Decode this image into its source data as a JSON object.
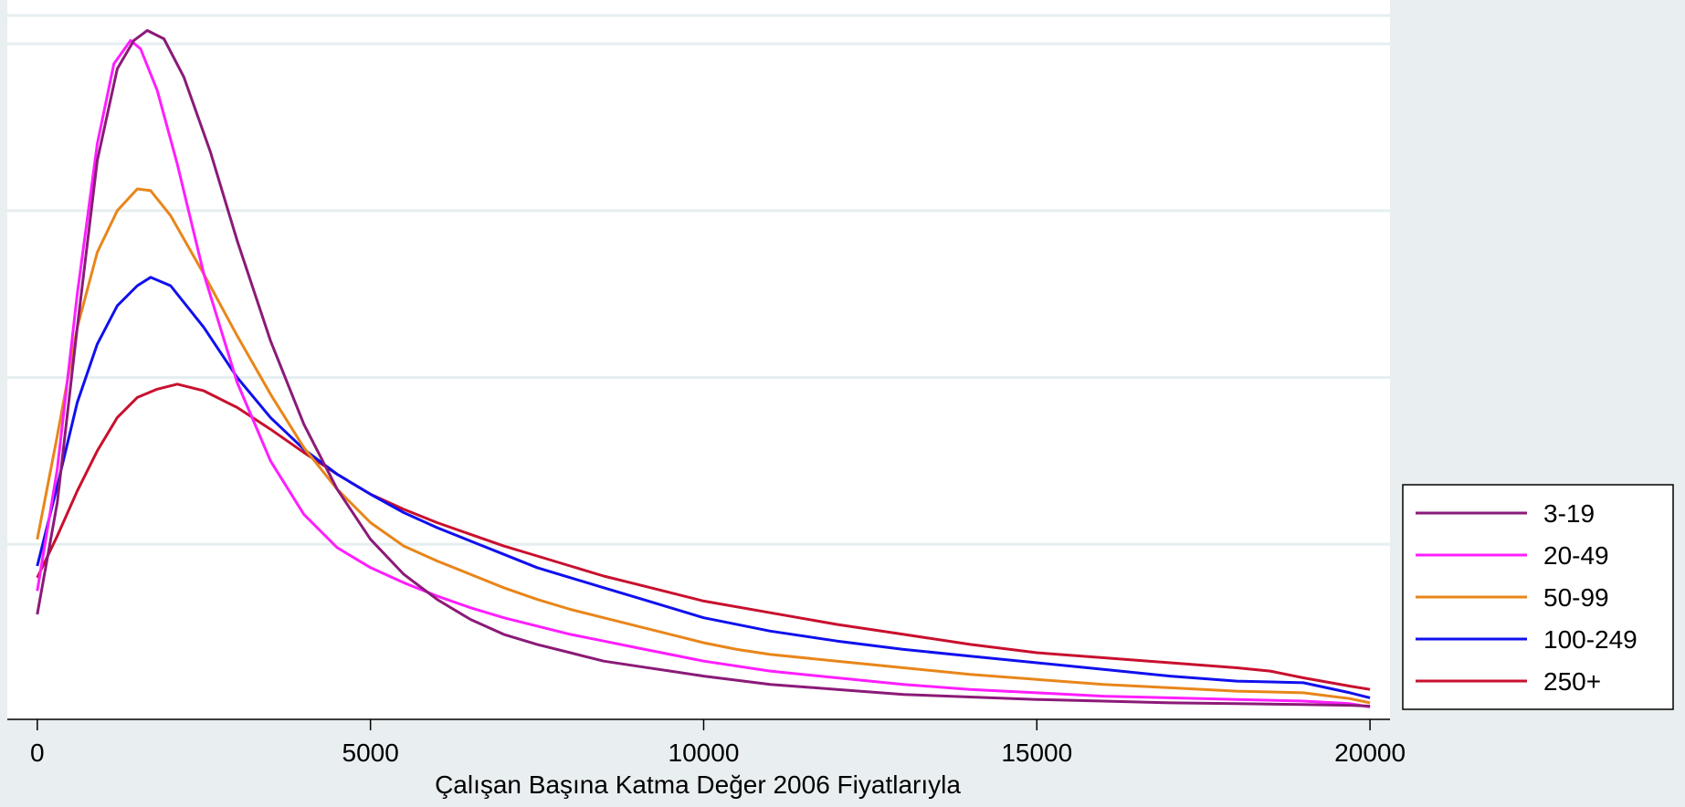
{
  "chart_data": {
    "type": "line",
    "title": "",
    "xlabel": "Çalışan Başına Katma Değer 2006 Fiyatlarıyla",
    "ylabel": "",
    "xlim": [
      -450,
      20300
    ],
    "ylim": [
      0,
      4
    ],
    "xticks": [
      "0",
      "5000",
      "10000",
      "15000",
      "20000"
    ],
    "x_tick_values": [
      0,
      5000,
      10000,
      15000,
      20000
    ],
    "grid": true,
    "y_gridlines": [
      1,
      2,
      3,
      4
    ],
    "legend_position": "right",
    "series": [
      {
        "name": "3-19",
        "color": "#8b1a78",
        "points": [
          [
            0,
            0.58
          ],
          [
            300,
            1.25
          ],
          [
            600,
            2.3
          ],
          [
            900,
            3.3
          ],
          [
            1200,
            3.85
          ],
          [
            1450,
            4.02
          ],
          [
            1650,
            4.08
          ],
          [
            1900,
            4.03
          ],
          [
            2200,
            3.8
          ],
          [
            2600,
            3.35
          ],
          [
            3000,
            2.82
          ],
          [
            3500,
            2.22
          ],
          [
            4000,
            1.72
          ],
          [
            4500,
            1.33
          ],
          [
            5000,
            1.03
          ],
          [
            5500,
            0.82
          ],
          [
            6000,
            0.67
          ],
          [
            6500,
            0.55
          ],
          [
            7000,
            0.46
          ],
          [
            7500,
            0.4
          ],
          [
            8000,
            0.35
          ],
          [
            8500,
            0.3
          ],
          [
            9000,
            0.27
          ],
          [
            9500,
            0.24
          ],
          [
            10000,
            0.21
          ],
          [
            11000,
            0.16
          ],
          [
            12000,
            0.13
          ],
          [
            13000,
            0.1
          ],
          [
            14000,
            0.085
          ],
          [
            15000,
            0.07
          ],
          [
            16000,
            0.06
          ],
          [
            17000,
            0.05
          ],
          [
            18000,
            0.045
          ],
          [
            19000,
            0.04
          ],
          [
            19700,
            0.035
          ],
          [
            20000,
            0.03
          ]
        ]
      },
      {
        "name": "20-49",
        "color": "#ff1eff",
        "points": [
          [
            0,
            0.72
          ],
          [
            300,
            1.45
          ],
          [
            600,
            2.5
          ],
          [
            900,
            3.4
          ],
          [
            1150,
            3.88
          ],
          [
            1400,
            4.02
          ],
          [
            1550,
            3.97
          ],
          [
            1800,
            3.72
          ],
          [
            2100,
            3.28
          ],
          [
            2500,
            2.62
          ],
          [
            3000,
            1.97
          ],
          [
            3500,
            1.5
          ],
          [
            4000,
            1.18
          ],
          [
            4500,
            0.98
          ],
          [
            5000,
            0.86
          ],
          [
            5500,
            0.77
          ],
          [
            6000,
            0.69
          ],
          [
            6500,
            0.62
          ],
          [
            7000,
            0.56
          ],
          [
            7500,
            0.51
          ],
          [
            8000,
            0.46
          ],
          [
            8500,
            0.42
          ],
          [
            9000,
            0.38
          ],
          [
            9500,
            0.34
          ],
          [
            10000,
            0.3
          ],
          [
            11000,
            0.24
          ],
          [
            12000,
            0.2
          ],
          [
            13000,
            0.16
          ],
          [
            14000,
            0.13
          ],
          [
            15000,
            0.11
          ],
          [
            16000,
            0.09
          ],
          [
            17000,
            0.08
          ],
          [
            18000,
            0.07
          ],
          [
            19000,
            0.06
          ],
          [
            19700,
            0.045
          ],
          [
            20000,
            0.025
          ]
        ]
      },
      {
        "name": "50-99",
        "color": "#e8861a",
        "points": [
          [
            0,
            1.03
          ],
          [
            300,
            1.65
          ],
          [
            600,
            2.3
          ],
          [
            900,
            2.75
          ],
          [
            1200,
            3.0
          ],
          [
            1500,
            3.13
          ],
          [
            1700,
            3.12
          ],
          [
            2000,
            2.97
          ],
          [
            2500,
            2.62
          ],
          [
            3000,
            2.25
          ],
          [
            3500,
            1.9
          ],
          [
            4000,
            1.58
          ],
          [
            4500,
            1.33
          ],
          [
            5000,
            1.13
          ],
          [
            5500,
            0.99
          ],
          [
            6000,
            0.9
          ],
          [
            6500,
            0.82
          ],
          [
            7000,
            0.74
          ],
          [
            7500,
            0.67
          ],
          [
            8000,
            0.61
          ],
          [
            8500,
            0.56
          ],
          [
            9000,
            0.51
          ],
          [
            9500,
            0.46
          ],
          [
            10000,
            0.41
          ],
          [
            10500,
            0.37
          ],
          [
            11000,
            0.34
          ],
          [
            12000,
            0.3
          ],
          [
            13000,
            0.26
          ],
          [
            14000,
            0.22
          ],
          [
            15000,
            0.19
          ],
          [
            16000,
            0.16
          ],
          [
            17000,
            0.14
          ],
          [
            18000,
            0.12
          ],
          [
            19000,
            0.11
          ],
          [
            19700,
            0.075
          ],
          [
            20000,
            0.05
          ]
        ]
      },
      {
        "name": "100-249",
        "color": "#1010ee",
        "points": [
          [
            0,
            0.87
          ],
          [
            300,
            1.35
          ],
          [
            600,
            1.85
          ],
          [
            900,
            2.2
          ],
          [
            1200,
            2.43
          ],
          [
            1500,
            2.55
          ],
          [
            1700,
            2.6
          ],
          [
            2000,
            2.55
          ],
          [
            2500,
            2.3
          ],
          [
            3000,
            2.0
          ],
          [
            3500,
            1.76
          ],
          [
            4000,
            1.57
          ],
          [
            4500,
            1.42
          ],
          [
            5000,
            1.3
          ],
          [
            5500,
            1.19
          ],
          [
            6000,
            1.1
          ],
          [
            6500,
            1.02
          ],
          [
            7000,
            0.94
          ],
          [
            7500,
            0.86
          ],
          [
            8000,
            0.8
          ],
          [
            8500,
            0.74
          ],
          [
            9000,
            0.68
          ],
          [
            9500,
            0.62
          ],
          [
            10000,
            0.56
          ],
          [
            11000,
            0.48
          ],
          [
            12000,
            0.42
          ],
          [
            13000,
            0.37
          ],
          [
            14000,
            0.33
          ],
          [
            15000,
            0.29
          ],
          [
            16000,
            0.25
          ],
          [
            17000,
            0.21
          ],
          [
            18000,
            0.18
          ],
          [
            19000,
            0.17
          ],
          [
            19700,
            0.11
          ],
          [
            20000,
            0.08
          ]
        ]
      },
      {
        "name": "250+",
        "color": "#c8102e",
        "points": [
          [
            0,
            0.8
          ],
          [
            300,
            1.05
          ],
          [
            600,
            1.32
          ],
          [
            900,
            1.56
          ],
          [
            1200,
            1.76
          ],
          [
            1500,
            1.88
          ],
          [
            1800,
            1.93
          ],
          [
            2100,
            1.96
          ],
          [
            2500,
            1.92
          ],
          [
            3000,
            1.82
          ],
          [
            3500,
            1.69
          ],
          [
            4000,
            1.55
          ],
          [
            4500,
            1.42
          ],
          [
            5000,
            1.3
          ],
          [
            5500,
            1.21
          ],
          [
            6000,
            1.13
          ],
          [
            6500,
            1.06
          ],
          [
            7000,
            0.99
          ],
          [
            7500,
            0.93
          ],
          [
            8000,
            0.87
          ],
          [
            8500,
            0.81
          ],
          [
            9000,
            0.76
          ],
          [
            9500,
            0.71
          ],
          [
            10000,
            0.66
          ],
          [
            11000,
            0.59
          ],
          [
            12000,
            0.52
          ],
          [
            13000,
            0.46
          ],
          [
            14000,
            0.4
          ],
          [
            15000,
            0.35
          ],
          [
            16000,
            0.32
          ],
          [
            17000,
            0.29
          ],
          [
            18000,
            0.26
          ],
          [
            18500,
            0.24
          ],
          [
            19000,
            0.2
          ],
          [
            19700,
            0.15
          ],
          [
            20000,
            0.13
          ]
        ]
      }
    ]
  }
}
